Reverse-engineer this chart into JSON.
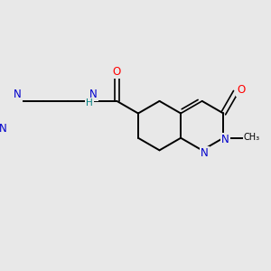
{
  "background_color": "#e8e8e8",
  "bond_color": "#000000",
  "nitrogen_color": "#0000cc",
  "oxygen_color": "#ff0000",
  "nh_color": "#008080",
  "figsize": [
    3.0,
    3.0
  ],
  "dpi": 100,
  "xlim": [
    0,
    10
  ],
  "ylim": [
    0,
    10
  ]
}
